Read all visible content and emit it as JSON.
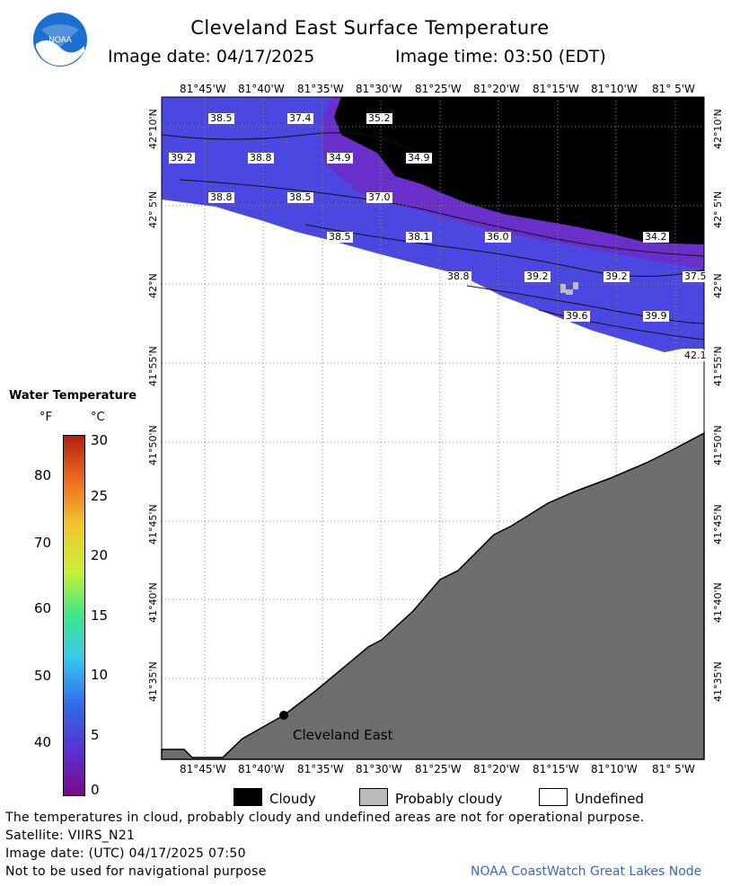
{
  "header": {
    "title": "Cleveland East Surface Temperature",
    "image_date": "Image date: 04/17/2025",
    "image_time": "Image time: 03:50 (EDT)"
  },
  "logo": {
    "text": "NOAA"
  },
  "map": {
    "lon_labels": [
      "81°45'W",
      "81°40'W",
      "81°35'W",
      "81°30'W",
      "81°25'W",
      "81°20'W",
      "81°15'W",
      "81°10'W",
      "81° 5'W"
    ],
    "lat_labels": [
      "42°10'N",
      "42° 5'N",
      "42°N",
      "41°55'N",
      "41°50'N",
      "41°45'N",
      "41°40'N",
      "41°35'N"
    ],
    "location_label": "Cleveland East",
    "isotherm_labels": [
      "38.5",
      "37.4",
      "35.2",
      "39.2",
      "38.8",
      "34.9",
      "34.9",
      "38.8",
      "38.5",
      "37.0",
      "38.5",
      "38.1",
      "36.0",
      "34.2",
      "38.8",
      "39.2",
      "39.2",
      "37.5",
      "39.6",
      "39.9",
      "42.1"
    ],
    "colors": {
      "land": "#6e6e6e",
      "cloud": "#000000",
      "water_cold": "#5b3dd6",
      "water_warm": "#3d4ee8",
      "undefined": "#ffffff"
    }
  },
  "colorbar": {
    "title": "Water Temperature",
    "unit_f": "°F",
    "unit_c": "°C",
    "f_ticks": [
      "80",
      "70",
      "60",
      "50",
      "40"
    ],
    "c_ticks": [
      "30",
      "25",
      "20",
      "15",
      "10",
      "5",
      "0"
    ]
  },
  "legend": {
    "cloudy": "Cloudy",
    "probably_cloudy": "Probably cloudy",
    "undefined": "Undefined"
  },
  "footer": {
    "disclaimer": "The temperatures in cloud, probably cloudy and undefined areas are not for operational purpose.",
    "satellite": "Satellite: VIIRS_N21",
    "utc_date": "Image date: (UTC) 04/17/2025  07:50",
    "nav_warning": "Not to be used for navigational purpose",
    "credit": "NOAA CoastWatch Great Lakes Node"
  }
}
